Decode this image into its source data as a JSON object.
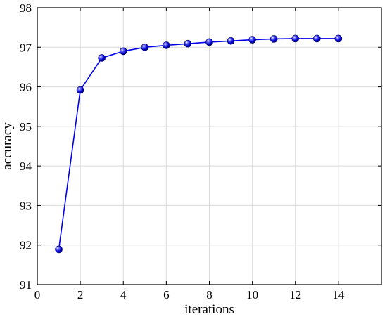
{
  "chart_data": {
    "type": "line",
    "xlabel": "iterations",
    "ylabel": "accuracy",
    "xlim": [
      0,
      16
    ],
    "ylim": [
      91,
      98
    ],
    "xticks": [
      0,
      2,
      4,
      6,
      8,
      10,
      12,
      14
    ],
    "yticks": [
      91,
      92,
      93,
      94,
      95,
      96,
      97,
      98
    ],
    "grid": true,
    "series": [
      {
        "x": [
          1,
          2,
          3,
          4,
          5,
          6,
          7,
          8,
          9,
          10,
          11,
          12,
          13,
          14
        ],
        "values": [
          91.89,
          95.92,
          96.73,
          96.9,
          97.0,
          97.05,
          97.09,
          97.13,
          97.16,
          97.19,
          97.21,
          97.22,
          97.22,
          97.22
        ],
        "color": "#0000ee",
        "marker": "sphere"
      }
    ]
  }
}
